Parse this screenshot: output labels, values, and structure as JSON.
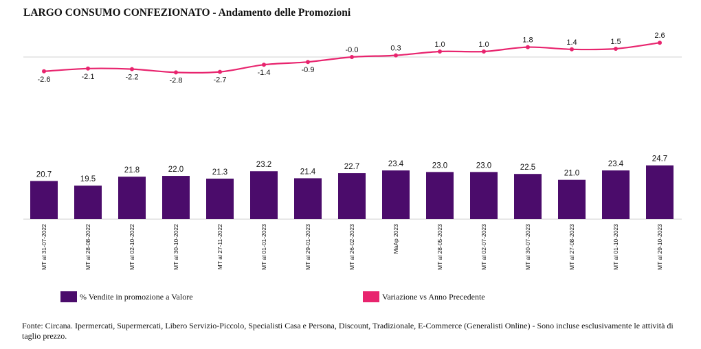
{
  "title": "LARGO CONSUMO CONFEZIONATO - Andamento delle Promozioni",
  "chart_data": {
    "type": "bar",
    "categories": [
      "MT al 31-07-2022",
      "MT al 28-08-2022",
      "MT al 02-10-2022",
      "MT al 30-10-2022",
      "MT al 27-11-2022",
      "MT al 01-01-2023",
      "MT al 29-01-2023",
      "MT al 26-02-2023",
      "MaAp 2023",
      "MT al 28-05-2023",
      "MT al 02-07-2023",
      "MT al 30-07-2023",
      "MT al 27-08-2023",
      "MT al 01-10-2023",
      "MT al 29-10-2023"
    ],
    "series": [
      {
        "name": "% Vendite in promozione a Valore",
        "type": "bar",
        "color": "#4b0c6b",
        "values": [
          20.7,
          19.5,
          21.8,
          22.0,
          21.3,
          23.2,
          21.4,
          22.7,
          23.4,
          23.0,
          23.0,
          22.5,
          21.0,
          23.4,
          24.7
        ],
        "labels": [
          "20.7",
          "19.5",
          "21.8",
          "22.0",
          "21.3",
          "23.2",
          "21.4",
          "22.7",
          "23.4",
          "23.0",
          "23.0",
          "22.5",
          "21.0",
          "23.4",
          "24.7"
        ]
      },
      {
        "name": "Variazione vs Anno Precedente",
        "type": "line",
        "color": "#e8246e",
        "values": [
          -2.6,
          -2.1,
          -2.2,
          -2.8,
          -2.7,
          -1.4,
          -0.9,
          -0.0,
          0.3,
          1.0,
          1.0,
          1.8,
          1.4,
          1.5,
          2.6
        ],
        "labels": [
          "-2.6",
          "-2.1",
          "-2.2",
          "-2.8",
          "-2.7",
          "-1.4",
          "-0.9",
          "-0.0",
          "0.3",
          "1.0",
          "1.0",
          "1.8",
          "1.4",
          "1.5",
          "2.6"
        ]
      }
    ],
    "legend": "bottom",
    "grid": false
  },
  "footer": "Fonte: Circana. Ipermercati, Supermercati, Libero Servizio-Piccolo, Specialisti Casa e Persona, Discount, Tradizionale, E-Commerce (Generalisti Online) - Sono incluse esclusivamente le attività di taglio prezzo."
}
